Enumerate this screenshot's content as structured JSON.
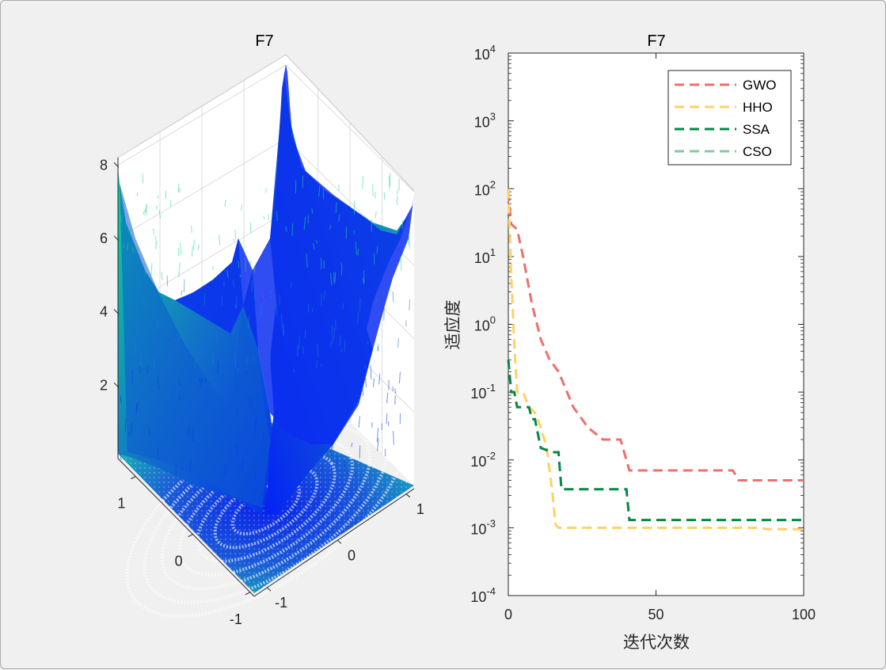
{
  "figure": {
    "accent": "#0072bd"
  },
  "chart_data": [
    {
      "type": "surface3d",
      "title": "F7",
      "x_ticks": [
        "-1",
        "0",
        "1"
      ],
      "y_ticks": [
        "-1",
        "0",
        "1"
      ],
      "z_ticks": [
        "2",
        "4",
        "6",
        "8"
      ],
      "xlim": [
        -1.28,
        1.28
      ],
      "ylim": [
        -1.28,
        1.28
      ],
      "zlim": [
        0,
        8.2
      ],
      "colormap": "winter",
      "surface": "noisy quartic bowl, high corners ~8, minimum ~0 near center, with contour projection on base plane"
    },
    {
      "type": "line",
      "title": "F7",
      "xlabel": "迭代次数",
      "ylabel": "适应度",
      "xlim": [
        0,
        100
      ],
      "ylim_log10": [
        -4,
        4
      ],
      "yscale": "log",
      "x_ticks": [
        "0",
        "50",
        "100"
      ],
      "y_tick_base": "10",
      "y_tick_exponents": [
        "-4",
        "-3",
        "-2",
        "-1",
        "0",
        "1",
        "2",
        "3",
        "4"
      ],
      "legend_position": "top-right",
      "series": [
        {
          "name": "GWO",
          "color": "#ef6f6c",
          "points": [
            [
              0,
              90
            ],
            [
              1,
              30
            ],
            [
              3,
              25
            ],
            [
              5,
              10
            ],
            [
              8,
              2
            ],
            [
              11,
              0.6
            ],
            [
              14,
              0.3
            ],
            [
              17,
              0.2
            ],
            [
              22,
              0.06
            ],
            [
              27,
              0.03
            ],
            [
              32,
              0.02
            ],
            [
              38,
              0.02
            ],
            [
              41,
              0.007
            ],
            [
              76,
              0.007
            ],
            [
              78,
              0.005
            ],
            [
              100,
              0.005
            ]
          ]
        },
        {
          "name": "HHO",
          "color": "#ffd166",
          "points": [
            [
              0,
              100
            ],
            [
              1,
              5
            ],
            [
              2,
              0.5
            ],
            [
              3,
              0.1
            ],
            [
              5,
              0.1
            ],
            [
              7,
              0.06
            ],
            [
              9,
              0.05
            ],
            [
              11,
              0.03
            ],
            [
              13,
              0.015
            ],
            [
              15,
              0.003
            ],
            [
              16,
              0.0011
            ],
            [
              17,
              0.001
            ],
            [
              85,
              0.001
            ],
            [
              88,
              0.00095
            ],
            [
              100,
              0.00095
            ]
          ]
        },
        {
          "name": "SSA",
          "color": "#008a44",
          "points": [
            [
              0,
              0.3
            ],
            [
              1,
              0.1
            ],
            [
              2,
              0.1
            ],
            [
              3,
              0.06
            ],
            [
              7,
              0.06
            ],
            [
              8,
              0.04
            ],
            [
              9,
              0.04
            ],
            [
              11,
              0.015
            ],
            [
              15,
              0.013
            ],
            [
              17,
              0.013
            ],
            [
              18,
              0.0037
            ],
            [
              40,
              0.0037
            ],
            [
              41,
              0.0013
            ],
            [
              100,
              0.0013
            ]
          ]
        },
        {
          "name": "CSO",
          "color": "#7fcca0",
          "points": []
        }
      ]
    }
  ]
}
